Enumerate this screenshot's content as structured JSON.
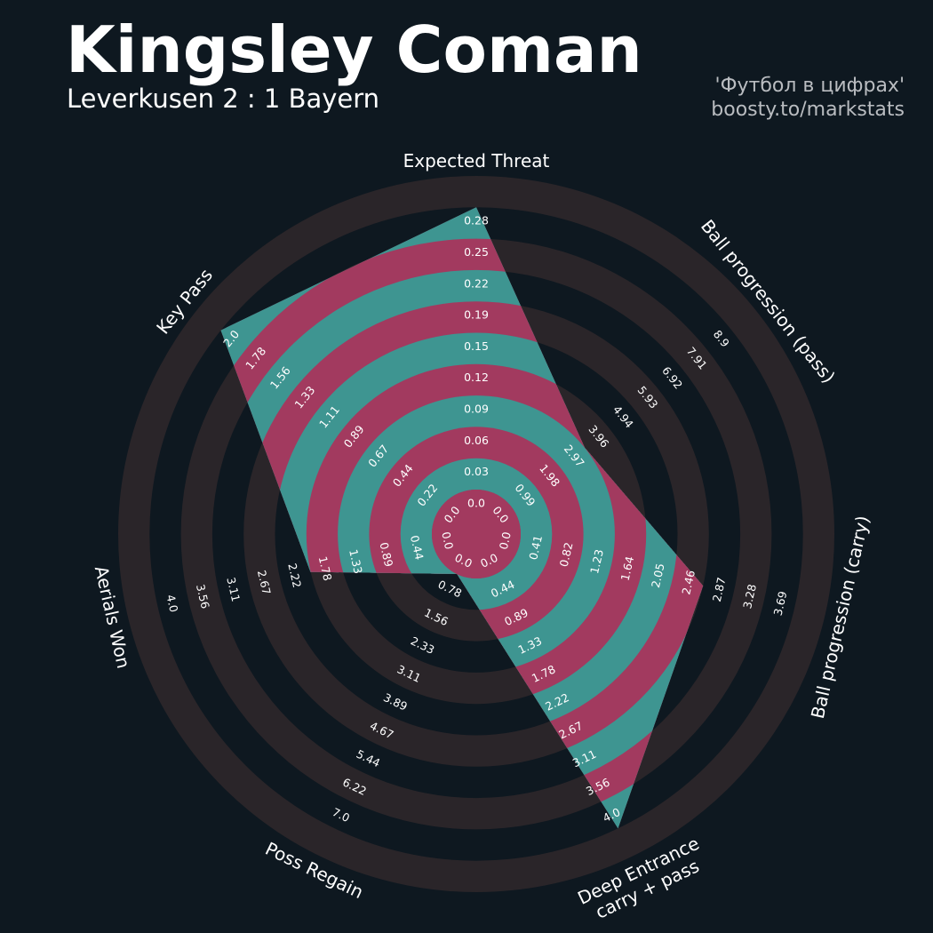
{
  "header": {
    "title": "Kingsley Coman",
    "subtitle": "Leverkusen 2 : 1 Bayern",
    "credit_line1": "'Футбол в цифрах'",
    "credit_line2": "boosty.to/markstats"
  },
  "colors": {
    "background": "#0e1820",
    "ring_light": "#2a2529",
    "ring_dark": "#0e1820",
    "fill_teal": "#3e9591",
    "fill_crimson": "#a23a5f",
    "text": "#ffffff",
    "credit_text": "#b9bcc0"
  },
  "chart_data": {
    "type": "radar",
    "title": "Kingsley Coman",
    "subtitle": "Leverkusen 2 : 1 Bayern",
    "params": [
      {
        "label": "Expected Threat",
        "ticks": [
          "0.0",
          "0.03",
          "0.06",
          "0.09",
          "0.12",
          "0.15",
          "0.19",
          "0.22",
          "0.25",
          "0.28"
        ],
        "min": 0.0,
        "max": 0.28,
        "value": 0.28
      },
      {
        "label": "Ball progression (pass)",
        "ticks": [
          "0.0",
          "0.99",
          "1.98",
          "2.97",
          "3.96",
          "4.94",
          "5.93",
          "6.92",
          "7.91",
          "8.9"
        ],
        "min": 0.0,
        "max": 8.9,
        "value": 2.97
      },
      {
        "label": "Ball progression (carry)",
        "ticks": [
          "0.0",
          "0.41",
          "0.82",
          "1.23",
          "1.64",
          "2.05",
          "2.46",
          "2.87",
          "3.28",
          "3.69"
        ],
        "min": 0.0,
        "max": 3.69,
        "value": 2.46
      },
      {
        "label": "Deep Entrance\ncarry + pass",
        "ticks": [
          "0.0",
          "0.44",
          "0.89",
          "1.33",
          "1.78",
          "2.22",
          "2.67",
          "3.11",
          "3.56",
          "4.0"
        ],
        "min": 0.0,
        "max": 4.0,
        "value": 4.0
      },
      {
        "label": "Poss Regain",
        "ticks": [
          "0.0",
          "0.78",
          "1.56",
          "2.33",
          "3.11",
          "3.89",
          "4.67",
          "5.44",
          "6.22",
          "7.0"
        ],
        "min": 0.0,
        "max": 7.0,
        "value": 0.0
      },
      {
        "label": "Aerials Won",
        "ticks": [
          "0.0",
          "0.44",
          "0.89",
          "1.33",
          "1.78",
          "2.22",
          "2.67",
          "3.11",
          "3.56",
          "4.0"
        ],
        "min": 0.0,
        "max": 4.0,
        "value": 1.78
      },
      {
        "label": "Key Pass",
        "ticks": [
          "0.0",
          "0.22",
          "0.44",
          "0.67",
          "0.89",
          "1.11",
          "1.33",
          "1.56",
          "1.78",
          "2.0"
        ],
        "min": 0.0,
        "max": 2.0,
        "value": 2.0
      }
    ]
  }
}
